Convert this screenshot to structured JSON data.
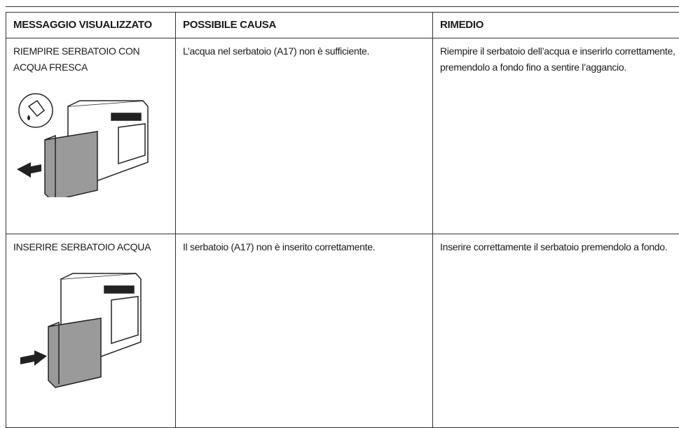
{
  "table": {
    "headers": [
      "MESSAGGIO VISUALIZZATO",
      "POSSIBILE CAUSA",
      "RIMEDIO"
    ],
    "rows": [
      [
        "RIEMPIRE SERBATOIO CON ACQUA FRESCA",
        "L’acqua nel serbatoio (A17) non è sufficiente.",
        "Riempire il serbatoio dell’acqua e inserirlo correttamente, premendolo a fondo fino a sentire l’aggancio."
      ],
      [
        "INSERIRE SERBATOIO ACQUA",
        "Il serbatoio (A17) non è inserito correttamente.",
        "Inserire correttamente il serbatoio premendolo a fondo."
      ]
    ]
  }
}
